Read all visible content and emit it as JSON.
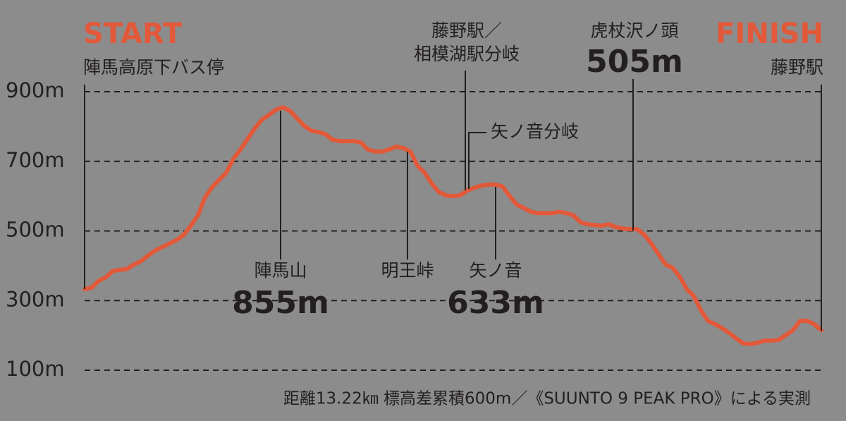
{
  "chart_data": {
    "type": "line",
    "color": "#e2593a",
    "values": [
      333,
      337,
      357,
      367,
      385,
      388,
      391,
      404,
      414,
      430,
      444,
      454,
      464,
      474,
      489,
      515,
      545,
      596,
      626,
      647,
      667,
      707,
      734,
      764,
      794,
      819,
      833,
      848,
      855,
      845,
      823,
      802,
      788,
      784,
      778,
      762,
      758,
      758,
      758,
      754,
      734,
      728,
      728,
      734,
      742,
      738,
      728,
      687,
      667,
      636,
      612,
      602,
      600,
      602,
      616,
      624,
      630,
      633,
      633,
      628,
      600,
      576,
      566,
      555,
      551,
      551,
      551,
      555,
      551,
      545,
      525,
      519,
      517,
      515,
      519,
      511,
      507,
      505,
      505,
      489,
      464,
      434,
      404,
      394,
      369,
      333,
      313,
      272,
      242,
      232,
      221,
      207,
      191,
      177,
      175,
      179,
      185,
      185,
      187,
      201,
      215,
      242,
      242,
      232,
      215
    ],
    "ylim": [
      100,
      900
    ],
    "yticks": [
      {
        "value": 100,
        "label": "100m"
      },
      {
        "value": 300,
        "label": "300m"
      },
      {
        "value": 500,
        "label": "500m"
      },
      {
        "value": 700,
        "label": "700m"
      },
      {
        "value": 900,
        "label": "900m"
      }
    ],
    "grid": true
  },
  "annotations": {
    "start": "START",
    "start_place": "陣馬高原下バス停",
    "finish": "FINISH",
    "finish_place": "藤野駅",
    "junction": [
      "藤野駅／",
      "相模湖駅分岐"
    ],
    "branch": "矢ノ音分岐",
    "peak1_name": "陣馬山",
    "peak1_elevation": "855m",
    "pass_name": "明王峠",
    "peak2_name": "矢ノ音",
    "peak2_elevation": "633m",
    "peak3_name": "虎杖沢ノ頭",
    "peak3_elevation": "505m",
    "footnote": "距離13.22㎞ 標高差累積600m／《SUUNTO 9 PEAK PRO》による実測"
  }
}
